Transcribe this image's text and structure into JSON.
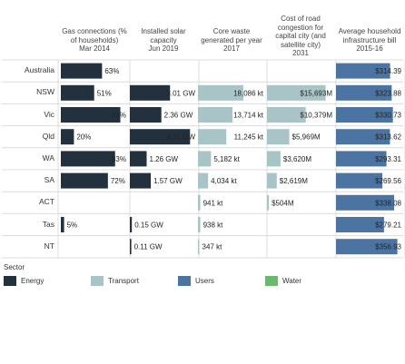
{
  "chart_data": {
    "type": "bar",
    "rows": [
      "Australia",
      "NSW",
      "Vic",
      "Qld",
      "WA",
      "SA",
      "ACT",
      "Tas",
      "NT"
    ],
    "columns": [
      {
        "key": "gas",
        "title": "Gas connections (% of households)",
        "period": "Mar 2014",
        "sector": "Energy",
        "max": 100,
        "values": [
          63,
          51,
          91,
          20,
          83,
          72,
          null,
          5,
          null
        ],
        "labels": [
          "63%",
          "51%",
          "91%",
          "20%",
          "83%",
          "72%",
          "",
          "5%",
          ""
        ]
      },
      {
        "key": "solar",
        "title": "Installed solar capacity",
        "period": "Jun 2019",
        "sector": "Energy",
        "max": 4.9,
        "values": [
          null,
          3.01,
          2.36,
          4.51,
          1.26,
          1.57,
          null,
          0.15,
          0.11
        ],
        "labels": [
          "",
          "3.01 GW",
          "2.36 GW",
          "4.51 GW",
          "1.26 GW",
          "1.57 GW",
          "",
          "0.15 GW",
          "0.11 GW"
        ]
      },
      {
        "key": "waste",
        "title": "Core waste generated per year",
        "period": "2017",
        "sector": "Transport",
        "max": 26000,
        "values": [
          null,
          18086,
          13714,
          11245,
          5182,
          4034,
          941,
          938,
          347
        ],
        "labels": [
          "",
          "18,086 kt",
          "13,714 kt",
          "11,245 kt",
          "5,182 kt",
          "4,034 kt",
          "941 kt",
          "938 kt",
          "347 kt"
        ]
      },
      {
        "key": "congestion",
        "title": "Cost of road congestion for capital city (and satellite city)",
        "period": "2031",
        "sector": "Transport",
        "max": 17500,
        "values": [
          null,
          15693,
          10379,
          5969,
          3620,
          2619,
          504,
          null,
          null
        ],
        "labels": [
          "",
          "$15,693M",
          "$10,379M",
          "$5,969M",
          "$3,620M",
          "$2,619M",
          "$504M",
          "",
          ""
        ]
      },
      {
        "key": "bill",
        "title": "Average household infrastructure bill",
        "period": "2015-16",
        "sector": "Users",
        "max": 380,
        "values": [
          314.39,
          323.88,
          330.73,
          313.62,
          293.31,
          269.56,
          338.08,
          279.21,
          356.93
        ],
        "labels": [
          "$314.39",
          "$323.88",
          "$330.73",
          "$313.62",
          "$293.31",
          "$269.56",
          "$338.08",
          "$279.21",
          "$356.93"
        ]
      }
    ],
    "legend": {
      "title": "Sector",
      "placement": "bottom-left",
      "items": [
        {
          "name": "Energy",
          "color": "#23313f"
        },
        {
          "name": "Transport",
          "color": "#a9c4c7"
        },
        {
          "name": "Users",
          "color": "#4c74a3"
        },
        {
          "name": "Water",
          "color": "#6cb86c"
        }
      ]
    },
    "grid": true
  }
}
